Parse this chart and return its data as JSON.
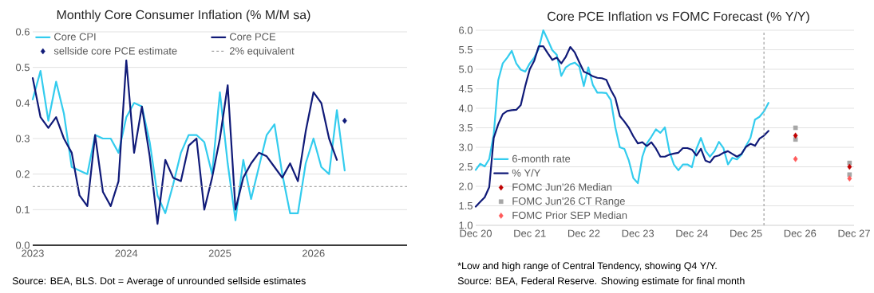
{
  "chart_data": [
    {
      "type": "line",
      "title": "Monthly Core Consumer Inflation (% M/M sa)",
      "x": [
        "2023-01",
        "2023-02",
        "2023-03",
        "2023-04",
        "2023-05",
        "2023-06",
        "2023-07",
        "2023-08",
        "2023-09",
        "2023-10",
        "2023-11",
        "2023-12",
        "2024-01",
        "2024-02",
        "2024-03",
        "2024-04",
        "2024-05",
        "2024-06",
        "2024-07",
        "2024-08",
        "2024-09",
        "2024-10",
        "2024-11",
        "2024-12",
        "2025-01",
        "2025-02",
        "2025-03",
        "2025-04",
        "2025-05",
        "2025-06",
        "2025-07",
        "2025-08",
        "2025-09",
        "2025-10",
        "2025-11",
        "2025-12",
        "2026-01",
        "2026-02",
        "2026-03",
        "2026-04",
        "2026-05"
      ],
      "series": [
        {
          "name": "Core CPI",
          "color": "#33ccee",
          "values": [
            0.41,
            0.49,
            0.35,
            0.46,
            0.37,
            0.22,
            0.21,
            0.2,
            0.31,
            0.3,
            0.3,
            0.26,
            0.36,
            0.4,
            0.39,
            0.29,
            0.14,
            0.09,
            0.17,
            0.26,
            0.31,
            0.31,
            0.29,
            0.2,
            0.43,
            0.23,
            0.07,
            0.24,
            0.13,
            0.22,
            0.31,
            0.34,
            0.2,
            0.09,
            0.09,
            0.23,
            0.3,
            0.22,
            0.2,
            0.38,
            0.21
          ]
        },
        {
          "name": "Core PCE",
          "color": "#101a78",
          "values": [
            0.47,
            0.36,
            0.33,
            0.36,
            0.3,
            0.26,
            0.14,
            0.11,
            0.31,
            0.15,
            0.11,
            0.18,
            0.52,
            0.26,
            0.39,
            0.25,
            0.06,
            0.24,
            0.19,
            0.18,
            0.28,
            0.3,
            0.1,
            0.19,
            0.3,
            0.45,
            0.1,
            0.19,
            0.23,
            0.26,
            0.25,
            0.22,
            0.19,
            0.23,
            0.18,
            0.32,
            0.43,
            0.4,
            0.3,
            0.24,
            null
          ]
        },
        {
          "name": "sellside core PCE estimate",
          "type": "scatter",
          "marker": "diamond",
          "color": "#101a78",
          "x": [
            "2026-05"
          ],
          "values": [
            0.35
          ]
        }
      ],
      "ref_lines": [
        {
          "axis": "y",
          "value": 0.165,
          "label": "2% equivalent",
          "color": "#a6a6a6",
          "line_style": "dashed"
        }
      ],
      "xlim": [
        "2023-01",
        "2027-01"
      ],
      "xticks": [
        {
          "value": "2023-01",
          "label": "2023"
        },
        {
          "value": "2024-01",
          "label": "2024"
        },
        {
          "value": "2025-01",
          "label": "2025"
        },
        {
          "value": "2026-01",
          "label": "2026"
        }
      ],
      "ylim": [
        0,
        0.6
      ],
      "yticks": [
        {
          "value": 0,
          "label": "0.0"
        },
        0.1,
        0.2,
        0.3,
        0.4,
        0.5,
        0.6
      ],
      "grid": "y",
      "legend": "top",
      "line_style": "solid",
      "annotations": [
        "Source: BEA, BLS. Dot = Average of unrounded sellside estimates"
      ]
    },
    {
      "type": "line",
      "title": "Core PCE Inflation vs FOMC Forecast (% Y/Y)",
      "x": [
        "2020-12",
        "2021-01",
        "2021-02",
        "2021-03",
        "2021-04",
        "2021-05",
        "2021-06",
        "2021-07",
        "2021-08",
        "2021-09",
        "2021-10",
        "2021-11",
        "2021-12",
        "2022-01",
        "2022-02",
        "2022-03",
        "2022-04",
        "2022-05",
        "2022-06",
        "2022-07",
        "2022-08",
        "2022-09",
        "2022-10",
        "2022-11",
        "2022-12",
        "2023-01",
        "2023-02",
        "2023-03",
        "2023-04",
        "2023-05",
        "2023-06",
        "2023-07",
        "2023-08",
        "2023-09",
        "2023-10",
        "2023-11",
        "2023-12",
        "2024-01",
        "2024-02",
        "2024-03",
        "2024-04",
        "2024-05",
        "2024-06",
        "2024-07",
        "2024-08",
        "2024-09",
        "2024-10",
        "2024-11",
        "2024-12",
        "2025-01",
        "2025-02",
        "2025-03",
        "2025-04",
        "2025-05",
        "2025-06",
        "2025-07",
        "2025-08",
        "2025-09",
        "2025-10",
        "2025-11",
        "2025-12",
        "2026-01",
        "2026-02",
        "2026-03",
        "2026-04",
        "2026-05"
      ],
      "series": [
        {
          "name": "6-month rate",
          "color": "#33ccee",
          "values": [
            2.42,
            2.58,
            2.51,
            2.7,
            3.33,
            4.72,
            5.15,
            5.3,
            5.47,
            5.15,
            4.99,
            4.94,
            5.15,
            5.3,
            5.53,
            6.0,
            5.75,
            5.49,
            5.37,
            4.83,
            5.05,
            5.13,
            5.17,
            5.07,
            4.57,
            5.05,
            4.6,
            4.4,
            4.4,
            4.39,
            4.21,
            3.51,
            3.0,
            2.96,
            2.66,
            2.21,
            2.08,
            2.76,
            3.1,
            3.27,
            3.46,
            3.37,
            3.51,
            2.9,
            2.56,
            2.41,
            2.56,
            2.56,
            2.49,
            2.96,
            3.24,
            2.91,
            2.76,
            2.9,
            3.14,
            2.98,
            2.56,
            2.73,
            2.69,
            2.81,
            3.03,
            3.24,
            3.71,
            3.78,
            3.92,
            4.14
          ]
        },
        {
          "name": "% Y/Y",
          "color": "#101a78",
          "values": [
            1.48,
            1.6,
            1.72,
            1.98,
            3.24,
            3.59,
            3.85,
            3.93,
            3.95,
            3.96,
            4.08,
            4.57,
            5.0,
            5.22,
            5.59,
            5.59,
            5.41,
            5.24,
            5.3,
            5.15,
            5.32,
            5.57,
            5.43,
            5.18,
            4.94,
            4.89,
            4.82,
            4.78,
            4.77,
            4.73,
            4.47,
            4.26,
            3.8,
            3.66,
            3.5,
            3.28,
            3.1,
            3.13,
            3.03,
            3.13,
            2.97,
            2.76,
            2.76,
            2.81,
            2.84,
            2.86,
            2.98,
            2.98,
            2.94,
            2.79,
            2.96,
            2.66,
            2.61,
            2.76,
            2.79,
            2.86,
            2.9,
            2.83,
            2.76,
            2.83,
            3.01,
            3.09,
            3.04,
            3.22,
            3.3,
            3.42
          ]
        },
        {
          "name": "FOMC Jun'26 Median",
          "type": "scatter",
          "marker": "diamond",
          "color": "#c00000",
          "x": [
            "2026-11",
            "2027-11"
          ],
          "values": [
            3.3,
            2.5
          ]
        },
        {
          "name": "FOMC Jun'26 CT Range",
          "type": "scatter",
          "marker": "square",
          "color": "#a6a6a6",
          "x": [
            "2026-11",
            "2026-11",
            "2027-11",
            "2027-11"
          ],
          "values": [
            3.5,
            3.2,
            2.6,
            2.3
          ]
        },
        {
          "name": "FOMC Prior SEP Median",
          "type": "scatter",
          "marker": "diamond",
          "color": "#ff5a5a",
          "x": [
            "2026-11",
            "2027-11"
          ],
          "values": [
            2.7,
            2.2
          ]
        }
      ],
      "ref_lines": [
        {
          "axis": "x",
          "value": "2026-04",
          "color": "#a6a6a6",
          "line_style": "dashed"
        }
      ],
      "xlim": [
        "2020-12",
        "2027-12"
      ],
      "xticks": [
        {
          "value": "2020-12",
          "label": "Dec 20"
        },
        {
          "value": "2021-12",
          "label": "Dec 21"
        },
        {
          "value": "2022-12",
          "label": "Dec 22"
        },
        {
          "value": "2023-12",
          "label": "Dec 23"
        },
        {
          "value": "2024-12",
          "label": "Dec 24"
        },
        {
          "value": "2025-12",
          "label": "Dec 25"
        },
        {
          "value": "2026-12",
          "label": "Dec 26"
        },
        {
          "value": "2027-12",
          "label": "Dec 27"
        }
      ],
      "ylim": [
        1,
        6
      ],
      "yticks": [
        {
          "value": 1,
          "label": "1.0"
        },
        1.5,
        {
          "value": 2,
          "label": "2.0"
        },
        2.5,
        {
          "value": 3,
          "label": "3.0"
        },
        3.5,
        {
          "value": 4,
          "label": "4.0"
        },
        4.5,
        {
          "value": 5,
          "label": "5.0"
        },
        5.5,
        {
          "value": 6,
          "label": "6.0"
        }
      ],
      "grid": "y",
      "legend": "bottom left",
      "line_style": "solid",
      "annotations": [
        "*Low and high range of Central Tendency, showing Q4 Y/Y.",
        "Source: BEA, Federal Reserve. Showing estimate for final month"
      ]
    }
  ]
}
